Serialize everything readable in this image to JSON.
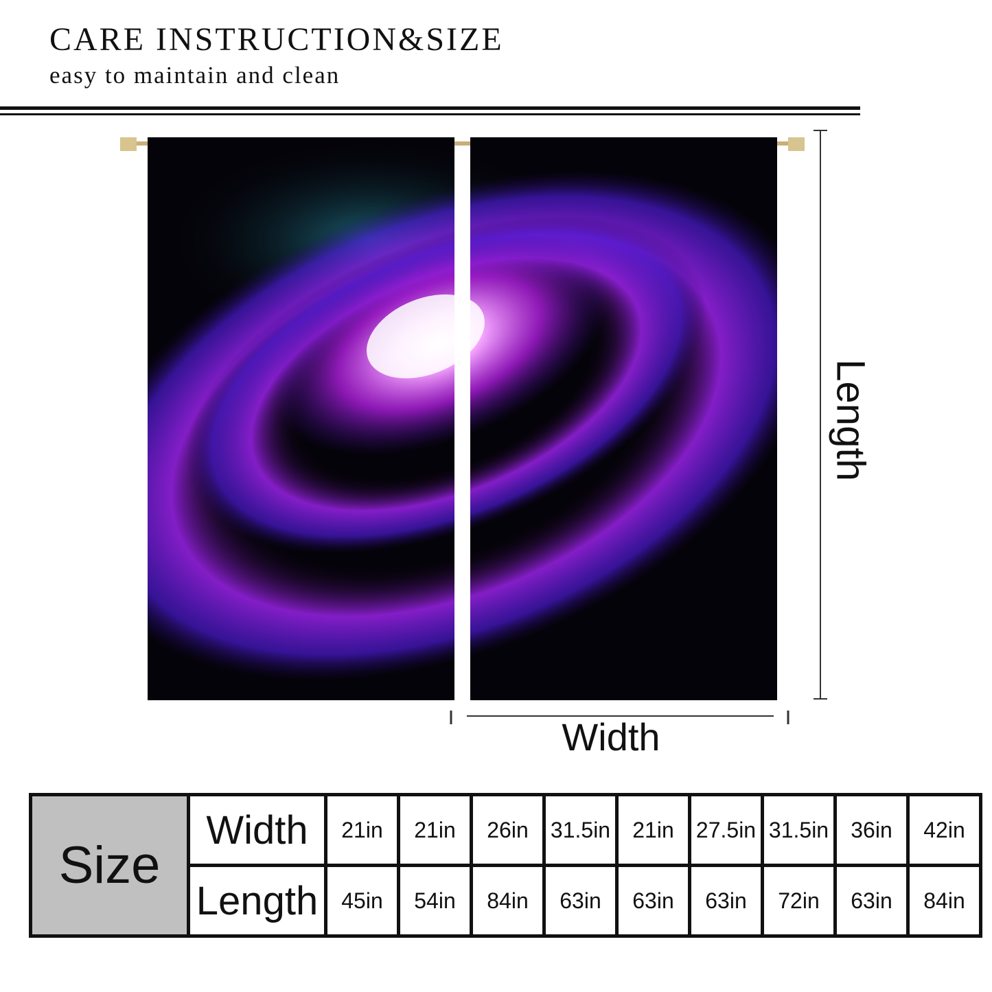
{
  "header": {
    "title": "CARE INSTRUCTION&SIZE",
    "subtitle": "easy to maintain and clean"
  },
  "diagram": {
    "length_label": "Length",
    "width_label": "Width"
  },
  "table": {
    "size_label": "Size",
    "rows": [
      {
        "label": "Width",
        "values": [
          "21in",
          "21in",
          "26in",
          "31.5in",
          "21in",
          "27.5in",
          "31.5in",
          "36in",
          "42in"
        ]
      },
      {
        "label": "Length",
        "values": [
          "45in",
          "54in",
          "84in",
          "63in",
          "63in",
          "63in",
          "72in",
          "63in",
          "84in"
        ]
      }
    ]
  }
}
